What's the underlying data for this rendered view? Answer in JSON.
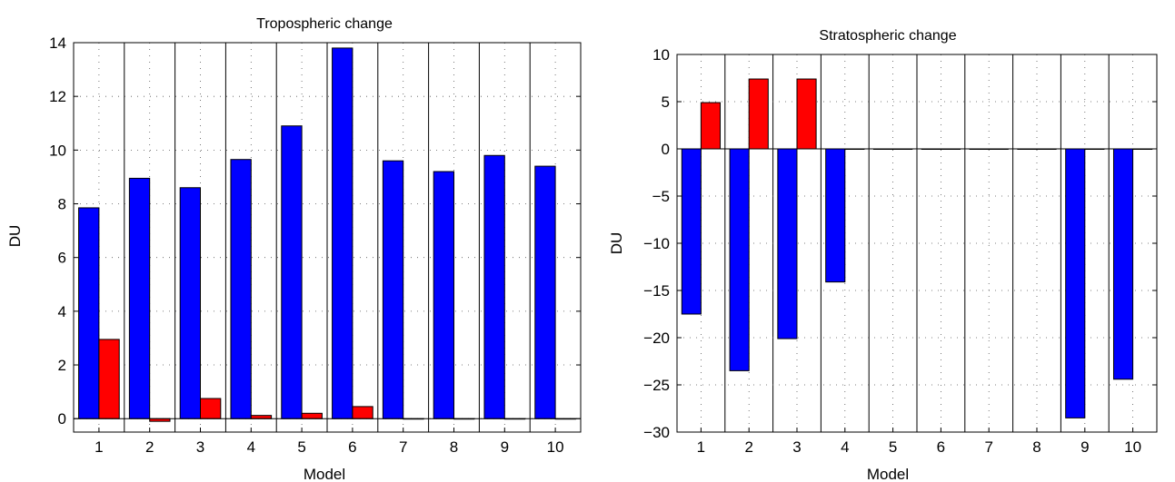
{
  "chart_data": [
    {
      "type": "bar",
      "title": "Tropospheric change",
      "xlabel": "Model",
      "ylabel": "DU",
      "categories": [
        "1",
        "2",
        "3",
        "4",
        "5",
        "6",
        "7",
        "8",
        "9",
        "10"
      ],
      "ylim": [
        -0.5,
        14
      ],
      "yticks": [
        0,
        2,
        4,
        6,
        8,
        10,
        12,
        14
      ],
      "grid": true,
      "series": [
        {
          "color": "#0000ff",
          "values": [
            7.85,
            8.95,
            8.6,
            9.65,
            10.9,
            13.8,
            9.6,
            9.2,
            9.8,
            9.4
          ]
        },
        {
          "color": "#ff0000",
          "values": [
            2.95,
            -0.1,
            0.75,
            0.12,
            0.2,
            0.45,
            0,
            0,
            0,
            0
          ]
        }
      ]
    },
    {
      "type": "bar",
      "title": "Stratospheric change",
      "xlabel": "Model",
      "ylabel": "DU",
      "categories": [
        "1",
        "2",
        "3",
        "4",
        "5",
        "6",
        "7",
        "8",
        "9",
        "10"
      ],
      "ylim": [
        -30,
        10
      ],
      "yticks": [
        10,
        5,
        0,
        -5,
        -10,
        -15,
        -20,
        -25,
        -30
      ],
      "grid": true,
      "series": [
        {
          "color": "#0000ff",
          "values": [
            -17.5,
            -23.5,
            -20.1,
            -14.1,
            0,
            0,
            0,
            0,
            -28.5,
            -24.4
          ]
        },
        {
          "color": "#ff0000",
          "values": [
            4.9,
            7.4,
            7.4,
            0,
            0,
            0,
            0,
            0,
            0,
            0
          ]
        }
      ]
    }
  ]
}
